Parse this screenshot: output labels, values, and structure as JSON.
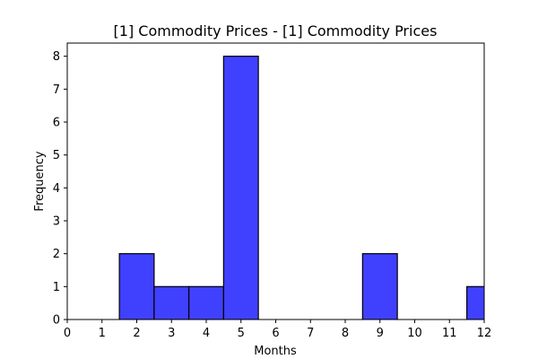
{
  "chart_data": {
    "type": "bar",
    "title": "[1] Commodity Prices - [1] Commodity Prices",
    "xlabel": "Months",
    "ylabel": "Frequency",
    "xlim": [
      0,
      12
    ],
    "ylim": [
      0,
      8.4
    ],
    "xticks": [
      "0",
      "1",
      "2",
      "3",
      "4",
      "5",
      "6",
      "7",
      "8",
      "9",
      "10",
      "11",
      "12"
    ],
    "yticks": [
      "0",
      "1",
      "2",
      "3",
      "4",
      "5",
      "6",
      "7",
      "8"
    ],
    "bins": [
      {
        "x0": 1.5,
        "x1": 2.5,
        "value": 2
      },
      {
        "x0": 2.5,
        "x1": 3.5,
        "value": 1
      },
      {
        "x0": 3.5,
        "x1": 4.5,
        "value": 1
      },
      {
        "x0": 4.5,
        "x1": 5.5,
        "value": 8
      },
      {
        "x0": 8.5,
        "x1": 9.5,
        "value": 2
      },
      {
        "x0": 11.5,
        "x1": 12.5,
        "value": 1
      }
    ],
    "bar_color": "#4040ff",
    "edge_color": "#000000",
    "grid": false,
    "legend": "none"
  }
}
